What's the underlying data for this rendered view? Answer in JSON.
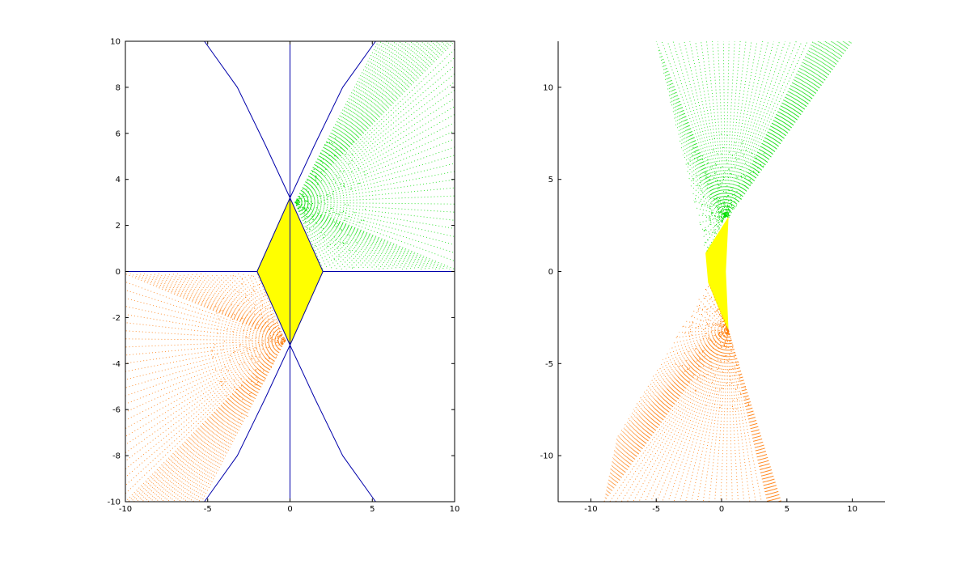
{
  "chart_data": [
    {
      "type": "scatter",
      "panel": "left",
      "title": "",
      "xlabel": "",
      "ylabel": "",
      "xlim": [
        -10,
        10
      ],
      "ylim": [
        -10,
        10
      ],
      "xticks": [
        -10,
        -5,
        0,
        5,
        10
      ],
      "yticks": [
        -10,
        -8,
        -6,
        -4,
        -2,
        0,
        2,
        4,
        6,
        8,
        10
      ],
      "xtick_labels": [
        "-10",
        "-5",
        "0",
        "5",
        "10"
      ],
      "ytick_labels": [
        "-10",
        "-8",
        "-6",
        "-4",
        "-2",
        "0",
        "2",
        "4",
        "6",
        "8",
        "10"
      ],
      "grid": false,
      "colors": {
        "green": "#00dd00",
        "yellow": "#ffff00",
        "orange": "#ff7700",
        "lines": "#0000aa"
      },
      "regions": [
        {
          "color": "yellow",
          "fill": true,
          "polygon": [
            [
              0,
              3.2
            ],
            [
              2,
              0
            ],
            [
              0,
              -3.2
            ],
            [
              -2,
              0
            ]
          ]
        },
        {
          "color": "green",
          "fill": false,
          "fan_origin": [
            0.3,
            3.0
          ],
          "fan_corners": [
            [
              2.0,
              0.1
            ],
            [
              10,
              0.1
            ],
            [
              10,
              10
            ],
            [
              5.2,
              10
            ]
          ]
        },
        {
          "color": "orange",
          "fill": false,
          "fan_origin": [
            -0.3,
            -3.0
          ],
          "fan_corners": [
            [
              -2.0,
              -0.1
            ],
            [
              -10,
              -0.1
            ],
            [
              -10,
              -10
            ],
            [
              -5.2,
              -10
            ]
          ]
        }
      ],
      "lines": [
        {
          "points": [
            [
              0,
              -10
            ],
            [
              0,
              10
            ]
          ]
        },
        {
          "points": [
            [
              -10,
              0
            ],
            [
              -2,
              0
            ]
          ]
        },
        {
          "points": [
            [
              2,
              0
            ],
            [
              10,
              0
            ]
          ]
        },
        {
          "points": [
            [
              -2,
              0
            ],
            [
              0,
              3.2
            ]
          ]
        },
        {
          "points": [
            [
              0,
              3.2
            ],
            [
              2,
              0
            ]
          ]
        },
        {
          "points": [
            [
              2,
              0
            ],
            [
              0,
              -3.2
            ]
          ]
        },
        {
          "points": [
            [
              0,
              -3.2
            ],
            [
              -2,
              0
            ]
          ]
        },
        {
          "points": [
            [
              0,
              3.2
            ],
            [
              1.5,
              5.5
            ],
            [
              3.2,
              8
            ],
            [
              5.2,
              10
            ]
          ]
        },
        {
          "points": [
            [
              0,
              3.2
            ],
            [
              -1.5,
              5.5
            ],
            [
              -3.2,
              8
            ],
            [
              -5.2,
              10
            ]
          ]
        },
        {
          "points": [
            [
              0,
              -3.2
            ],
            [
              1.5,
              -5.5
            ],
            [
              3.2,
              -8
            ],
            [
              5.2,
              -10
            ]
          ]
        },
        {
          "points": [
            [
              0,
              -3.2
            ],
            [
              -1.5,
              -5.5
            ],
            [
              -3.2,
              -8
            ],
            [
              -5.2,
              -10
            ]
          ]
        }
      ]
    },
    {
      "type": "scatter",
      "panel": "right",
      "title": "",
      "xlabel": "",
      "ylabel": "",
      "xlim": [
        -12.5,
        12.5
      ],
      "ylim": [
        -12.5,
        12.5
      ],
      "xticks": [
        -10,
        -5,
        0,
        5,
        10
      ],
      "yticks": [
        -10,
        -5,
        0,
        5,
        10
      ],
      "xtick_labels": [
        "-10",
        "-5",
        "0",
        "5",
        "10"
      ],
      "ytick_labels": [
        "-10",
        "-5",
        "0",
        "5",
        "10"
      ],
      "grid": false,
      "axes_box": false,
      "colors": {
        "green": "#00dd00",
        "yellow": "#ffff00",
        "orange": "#ff7700"
      },
      "regions": [
        {
          "color": "yellow",
          "fill": true,
          "polygon": [
            [
              -1.2,
              1.0
            ],
            [
              0.5,
              2.9
            ],
            [
              0.3,
              0
            ],
            [
              0.5,
              -3.2
            ],
            [
              -1.0,
              -0.6
            ]
          ]
        },
        {
          "color": "green",
          "fill": false,
          "fan_origin": [
            0.3,
            3.0
          ],
          "fan_corners": [
            [
              -1.2,
              1.0
            ],
            [
              -5.0,
              12.5
            ],
            [
              7.0,
              12.5
            ],
            [
              10.0,
              12.5
            ],
            [
              0.5,
              2.9
            ]
          ]
        },
        {
          "color": "orange",
          "fill": false,
          "fan_origin": [
            0.5,
            -3.2
          ],
          "fan_corners": [
            [
              -1.0,
              -0.6
            ],
            [
              -8.0,
              -9.0
            ],
            [
              -9.0,
              -12.5
            ],
            [
              3.5,
              -12.5
            ],
            [
              4.6,
              -12.5
            ]
          ]
        }
      ]
    }
  ]
}
